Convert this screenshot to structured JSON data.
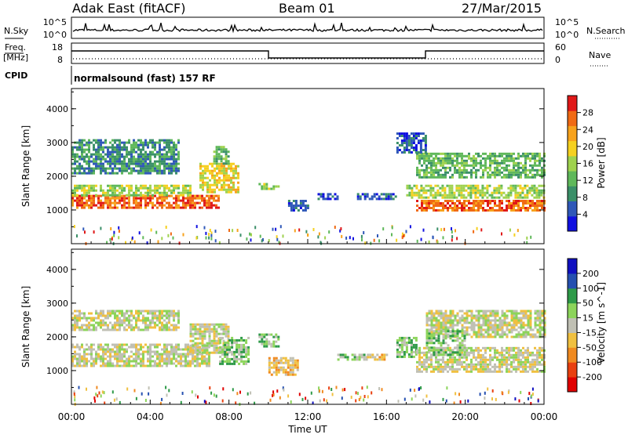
{
  "header": {
    "station": "Adak East (fitACF)",
    "beam": "Beam 01",
    "date": "27/Mar/2015"
  },
  "strips": {
    "nsky_label": "N.Sky",
    "nsearch_label": "N.Search",
    "freq_label_1": "Freq.",
    "freq_label_2": "[MHz]",
    "nave_label": "Nave",
    "cpid_label": "CPID",
    "cpid_text": "normalsound (fast) 157 RF",
    "noise_left_ticks": [
      "10^5",
      "10^0"
    ],
    "noise_right_ticks": [
      "10^5",
      "10^0"
    ],
    "freq_left_ticks": [
      "18",
      "8"
    ],
    "freq_right_ticks": [
      "60",
      "0"
    ]
  },
  "colors": {
    "power": [
      "#1010e0",
      "#2f58b8",
      "#3a8f68",
      "#5fb85a",
      "#9fd24e",
      "#f5d020",
      "#f7a21c",
      "#f06a14",
      "#e01818"
    ],
    "velocity": [
      "#1010c0",
      "#2550b0",
      "#2e9a48",
      "#8cd45a",
      "#c0c0b4",
      "#f0c040",
      "#f08a20",
      "#e84010",
      "#e00000"
    ]
  },
  "chart_data": [
    {
      "type": "heatmap",
      "name": "power",
      "xlabel": "",
      "ylabel": "Slant Range [km]",
      "colorbar_label": "Power [dB]",
      "colorbar_ticks": [
        "28",
        "24",
        "20",
        "16",
        "12",
        "8",
        "4"
      ],
      "x_ticks": [
        "00:00",
        "04:00",
        "08:00",
        "12:00",
        "16:00",
        "20:00",
        "00:00"
      ],
      "y_ticks": [
        "4000",
        "3000",
        "2000",
        "1000"
      ],
      "ylim": [
        0,
        4600
      ],
      "xlim_hours": [
        0,
        24
      ],
      "bands": [
        {
          "x": [
            0,
            7.5
          ],
          "y": [
            1100,
            1450
          ],
          "level": 7
        },
        {
          "x": [
            0,
            6.0
          ],
          "y": [
            1450,
            1750
          ],
          "level": 4
        },
        {
          "x": [
            0,
            5.5
          ],
          "y": [
            2100,
            3100
          ],
          "level": 2
        },
        {
          "x": [
            6.5,
            8.5
          ],
          "y": [
            1500,
            2400
          ],
          "level": 5
        },
        {
          "x": [
            7.2,
            8.0
          ],
          "y": [
            2400,
            2900
          ],
          "level": 3
        },
        {
          "x": [
            9.5,
            10.5
          ],
          "y": [
            1600,
            1800
          ],
          "level": 4
        },
        {
          "x": [
            11.0,
            12.0
          ],
          "y": [
            1000,
            1300
          ],
          "level": 1
        },
        {
          "x": [
            12.5,
            13.5
          ],
          "y": [
            1300,
            1500
          ],
          "level": 1
        },
        {
          "x": [
            14.5,
            16.5
          ],
          "y": [
            1300,
            1500
          ],
          "level": 1
        },
        {
          "x": [
            17.5,
            24.0
          ],
          "y": [
            1000,
            1300
          ],
          "level": 7
        },
        {
          "x": [
            17.0,
            24.0
          ],
          "y": [
            1350,
            1750
          ],
          "level": 4
        },
        {
          "x": [
            17.5,
            24.0
          ],
          "y": [
            2000,
            2700
          ],
          "level": 3
        },
        {
          "x": [
            16.5,
            18.0
          ],
          "y": [
            2700,
            3300
          ],
          "level": 1
        }
      ]
    },
    {
      "type": "heatmap",
      "name": "velocity",
      "xlabel": "Time UT",
      "ylabel": "Slant Range [km]",
      "colorbar_label": "Velocity [m s^-1]",
      "colorbar_ticks": [
        "200",
        "100",
        "50",
        "15",
        "-15",
        "-50",
        "-100",
        "-200"
      ],
      "x_ticks": [
        "00:00",
        "04:00",
        "08:00",
        "12:00",
        "16:00",
        "20:00",
        "00:00"
      ],
      "y_ticks": [
        "4000",
        "3000",
        "2000",
        "1000"
      ],
      "ylim": [
        0,
        4600
      ],
      "xlim_hours": [
        0,
        24
      ],
      "bands": [
        {
          "x": [
            0,
            7.0
          ],
          "y": [
            1150,
            1800
          ],
          "level": 4
        },
        {
          "x": [
            0,
            5.5
          ],
          "y": [
            2200,
            2800
          ],
          "level": 4
        },
        {
          "x": [
            6.0,
            8.0
          ],
          "y": [
            1500,
            2400
          ],
          "level": 4
        },
        {
          "x": [
            7.5,
            9.0
          ],
          "y": [
            1200,
            2000
          ],
          "level": 3
        },
        {
          "x": [
            9.5,
            10.5
          ],
          "y": [
            1700,
            2100
          ],
          "level": 3
        },
        {
          "x": [
            10.0,
            11.5
          ],
          "y": [
            900,
            1400
          ],
          "level": 5
        },
        {
          "x": [
            13.5,
            15.0
          ],
          "y": [
            1300,
            1500
          ],
          "level": 3
        },
        {
          "x": [
            15.0,
            16.0
          ],
          "y": [
            1300,
            1500
          ],
          "level": 5
        },
        {
          "x": [
            16.5,
            17.5
          ],
          "y": [
            1400,
            2000
          ],
          "level": 3
        },
        {
          "x": [
            17.5,
            24.0
          ],
          "y": [
            1000,
            1700
          ],
          "level": 4
        },
        {
          "x": [
            18.0,
            24.0
          ],
          "y": [
            2000,
            2800
          ],
          "level": 4
        },
        {
          "x": [
            18.0,
            20.0
          ],
          "y": [
            1500,
            2200
          ],
          "level": 3
        }
      ]
    }
  ]
}
